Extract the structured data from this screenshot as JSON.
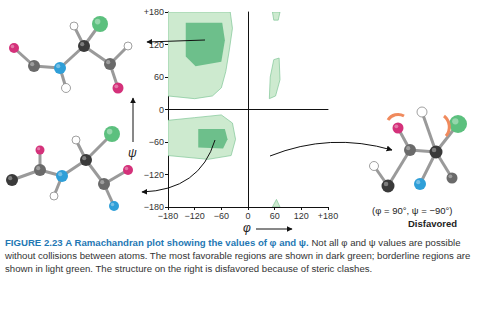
{
  "chart_data": {
    "type": "area",
    "x_label": "φ",
    "y_label": "ψ",
    "xlim": [
      -180,
      180
    ],
    "ylim": [
      -180,
      180
    ],
    "xticks": [
      {
        "value": -180,
        "label": "−180"
      },
      {
        "value": -120,
        "label": "−120"
      },
      {
        "value": -60,
        "label": "−60"
      },
      0,
      60,
      120,
      {
        "value": 180,
        "label": "+180"
      }
    ],
    "yticks": [
      {
        "value": -180,
        "label": "−180"
      },
      {
        "value": -120,
        "label": "−120"
      },
      {
        "value": -60,
        "label": "−60"
      },
      0,
      60,
      120,
      {
        "value": 180,
        "label": "+180"
      }
    ],
    "grid": false,
    "series": [
      {
        "color": "#cdeacf",
        "polygons": [
          [
            [
              -180,
              180
            ],
            [
              -40,
              180
            ],
            [
              -35,
              150
            ],
            [
              -42,
              110
            ],
            [
              -50,
              70
            ],
            [
              -60,
              40
            ],
            [
              -80,
              25
            ],
            [
              -120,
              20
            ],
            [
              -180,
              25
            ]
          ],
          [
            [
              -180,
              -20
            ],
            [
              -120,
              -15
            ],
            [
              -60,
              -10
            ],
            [
              -35,
              -25
            ],
            [
              -28,
              -55
            ],
            [
              -38,
              -85
            ],
            [
              -90,
              -92
            ],
            [
              -180,
              -85
            ]
          ],
          [
            [
              48,
              20
            ],
            [
              62,
              25
            ],
            [
              72,
              55
            ],
            [
              70,
              95
            ],
            [
              58,
              92
            ],
            [
              50,
              60
            ]
          ],
          [
            [
              55,
              180
            ],
            [
              72,
              180
            ],
            [
              68,
              165
            ],
            [
              58,
              165
            ]
          ],
          [
            [
              55,
              -180
            ],
            [
              72,
              -180
            ],
            [
              64,
              -166
            ]
          ]
        ]
      },
      {
        "color": "#6dbf8b",
        "polygons": [
          [
            [
              -140,
              160
            ],
            [
              -58,
              160
            ],
            [
              -52,
              128
            ],
            [
              -60,
              88
            ],
            [
              -118,
              80
            ],
            [
              -140,
              98
            ]
          ],
          [
            [
              -112,
              -36
            ],
            [
              -52,
              -36
            ],
            [
              -46,
              -55
            ],
            [
              -56,
              -72
            ],
            [
              -112,
              -70
            ]
          ]
        ]
      }
    ],
    "annotations": [
      "(φ = 90°, ψ = −90°)",
      "Disfavored"
    ]
  },
  "caption": {
    "label": "FIGURE 2.23",
    "title": "A Ramachandran plot showing the values of φ and ψ.",
    "text": "Not all φ and ψ values are possible without collisions between atoms. The most favorable regions are shown in dark green; borderline regions are shown in light green. The structure on the right is disfavored because of steric clashes."
  }
}
